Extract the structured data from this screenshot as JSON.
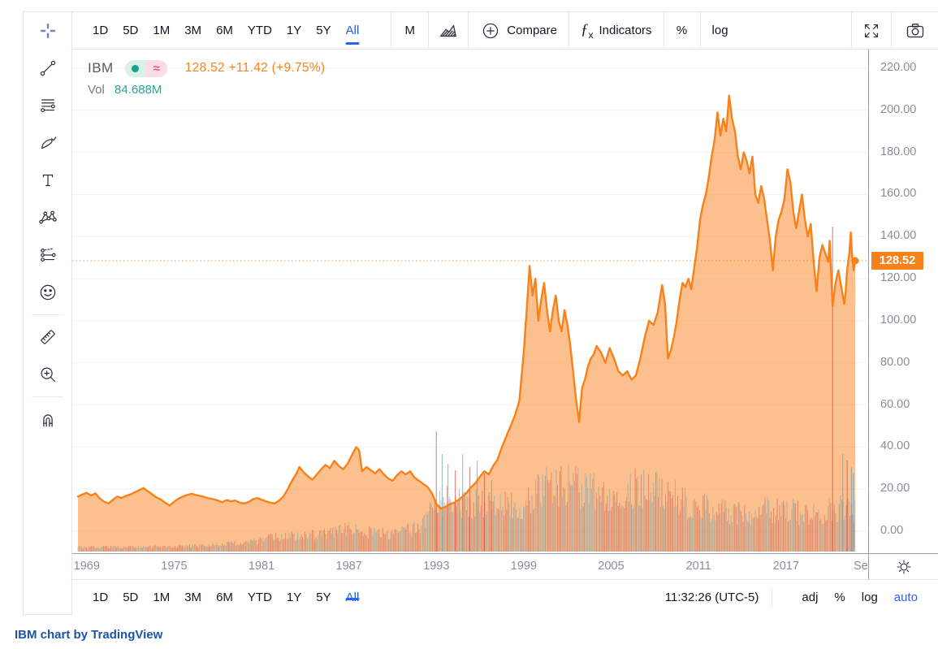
{
  "toolbar_top": {
    "ranges": [
      "1D",
      "5D",
      "1M",
      "3M",
      "6M",
      "YTD",
      "1Y",
      "5Y",
      "All"
    ],
    "active_range": "All",
    "interval": "M",
    "compare_label": "Compare",
    "indicators_label": "Indicators",
    "fx_glyph": "ƒ",
    "fx_sub": "x",
    "percent_label": "%",
    "log_label": "log"
  },
  "sidebar": {
    "crosshair": "crosshair-icon",
    "groups": [
      [
        "trend-line-icon",
        "fib-lines-icon",
        "brush-icon",
        "text-icon",
        "xabcd-pattern-icon",
        "forecast-icon",
        "emoji-icon"
      ],
      [
        "ruler-icon",
        "zoom-in-icon"
      ],
      [
        "magnet-icon"
      ]
    ]
  },
  "legend": {
    "symbol": "IBM",
    "approx_glyph": "≈",
    "price_text": "128.52 +11.42 (+9.75%)",
    "vol_label": "Vol",
    "vol_value": "84.688M"
  },
  "price_axis": {
    "ticks": [
      220,
      200,
      180,
      160,
      140,
      120,
      100,
      80,
      60,
      40,
      20,
      0
    ],
    "badge": "128.52"
  },
  "time_axis": {
    "tick_years": [
      1969,
      1975,
      1981,
      1987,
      1993,
      1999,
      2005,
      2011,
      2017
    ],
    "partial_label": "Se"
  },
  "toolbar_bottom": {
    "ranges": [
      "1D",
      "5D",
      "1M",
      "3M",
      "6M",
      "YTD",
      "1Y",
      "5Y",
      "All"
    ],
    "active_range": "All",
    "clock": "11:32:26 (UTC-5)",
    "adj_label": "adj",
    "percent_label": "%",
    "log_label": "log",
    "auto_label": "auto"
  },
  "attribution": "IBM chart by TradingView",
  "colors": {
    "accent_orange": "#f7821c",
    "area_fill": "rgba(247,130,28,0.5)",
    "active_blue": "#2962ff",
    "grid": "#f0f2f5",
    "vol_red": "rgba(208,82,73,0.5)",
    "vol_blue": "rgba(106,158,181,0.5)",
    "teal": "#26a69a",
    "crosshair_blue": "#7680c8"
  },
  "chart_data": {
    "type": "area",
    "symbol": "IBM",
    "interval": "M",
    "title": "IBM 128.52 +11.42 (+9.75%)",
    "x_axis": {
      "start_year": 1968.4,
      "end_year": 2021.75,
      "tick_years": [
        1969,
        1975,
        1981,
        1987,
        1993,
        1999,
        2005,
        2011,
        2017
      ]
    },
    "y_axis": {
      "min": 0,
      "max": 220,
      "tick_step": 20,
      "last_price": 128.52,
      "grid": true
    },
    "price_points": [
      [
        1968.4,
        16.5
      ],
      [
        1968.7,
        17.5
      ],
      [
        1969.0,
        18.2
      ],
      [
        1969.3,
        17.0
      ],
      [
        1969.6,
        18.0
      ],
      [
        1969.9,
        15.5
      ],
      [
        1970.2,
        14.0
      ],
      [
        1970.5,
        13.2
      ],
      [
        1970.8,
        15.0
      ],
      [
        1971.1,
        16.5
      ],
      [
        1971.4,
        15.8
      ],
      [
        1971.7,
        16.8
      ],
      [
        1972.0,
        17.5
      ],
      [
        1972.3,
        18.5
      ],
      [
        1972.6,
        19.5
      ],
      [
        1972.9,
        20.5
      ],
      [
        1973.2,
        19.0
      ],
      [
        1973.5,
        17.5
      ],
      [
        1973.8,
        16.0
      ],
      [
        1974.1,
        15.0
      ],
      [
        1974.4,
        13.5
      ],
      [
        1974.7,
        12.2
      ],
      [
        1975.0,
        14.0
      ],
      [
        1975.3,
        15.5
      ],
      [
        1975.6,
        16.5
      ],
      [
        1975.9,
        17.2
      ],
      [
        1976.2,
        17.8
      ],
      [
        1976.5,
        17.2
      ],
      [
        1976.8,
        16.8
      ],
      [
        1977.1,
        16.2
      ],
      [
        1977.4,
        15.6
      ],
      [
        1977.7,
        15.2
      ],
      [
        1978.0,
        14.6
      ],
      [
        1978.3,
        13.8
      ],
      [
        1978.6,
        14.8
      ],
      [
        1978.9,
        14.2
      ],
      [
        1979.2,
        14.6
      ],
      [
        1979.5,
        13.6
      ],
      [
        1979.8,
        13.2
      ],
      [
        1980.1,
        13.8
      ],
      [
        1980.4,
        15.2
      ],
      [
        1980.7,
        15.8
      ],
      [
        1981.0,
        15.0
      ],
      [
        1981.3,
        14.2
      ],
      [
        1981.6,
        13.6
      ],
      [
        1981.9,
        13.2
      ],
      [
        1982.2,
        14.5
      ],
      [
        1982.5,
        16.5
      ],
      [
        1982.8,
        20.0
      ],
      [
        1983.1,
        24.0
      ],
      [
        1983.4,
        27.5
      ],
      [
        1983.6,
        30.5
      ],
      [
        1983.9,
        28.0
      ],
      [
        1984.2,
        26.0
      ],
      [
        1984.5,
        24.5
      ],
      [
        1984.8,
        27.0
      ],
      [
        1985.1,
        29.5
      ],
      [
        1985.4,
        31.5
      ],
      [
        1985.7,
        30.0
      ],
      [
        1986.0,
        33.5
      ],
      [
        1986.3,
        31.0
      ],
      [
        1986.6,
        29.5
      ],
      [
        1986.9,
        32.0
      ],
      [
        1987.2,
        36.0
      ],
      [
        1987.5,
        40.0
      ],
      [
        1987.7,
        38.5
      ],
      [
        1987.9,
        28.5
      ],
      [
        1988.2,
        30.5
      ],
      [
        1988.5,
        29.0
      ],
      [
        1988.8,
        27.5
      ],
      [
        1989.1,
        29.5
      ],
      [
        1989.4,
        27.0
      ],
      [
        1989.7,
        25.0
      ],
      [
        1990.0,
        24.0
      ],
      [
        1990.3,
        26.5
      ],
      [
        1990.6,
        28.5
      ],
      [
        1990.9,
        27.0
      ],
      [
        1991.2,
        28.5
      ],
      [
        1991.5,
        25.5
      ],
      [
        1991.8,
        24.0
      ],
      [
        1992.1,
        22.5
      ],
      [
        1992.4,
        21.0
      ],
      [
        1992.7,
        18.0
      ],
      [
        1993.0,
        13.0
      ],
      [
        1993.3,
        10.8
      ],
      [
        1993.6,
        11.5
      ],
      [
        1993.9,
        12.8
      ],
      [
        1994.2,
        13.5
      ],
      [
        1994.5,
        14.8
      ],
      [
        1994.8,
        16.5
      ],
      [
        1995.1,
        18.5
      ],
      [
        1995.4,
        21.0
      ],
      [
        1995.7,
        23.0
      ],
      [
        1996.0,
        26.0
      ],
      [
        1996.3,
        28.5
      ],
      [
        1996.6,
        27.0
      ],
      [
        1996.9,
        31.0
      ],
      [
        1997.2,
        34.0
      ],
      [
        1997.5,
        40.0
      ],
      [
        1997.8,
        45.0
      ],
      [
        1998.1,
        50.0
      ],
      [
        1998.4,
        55.0
      ],
      [
        1998.7,
        62.0
      ],
      [
        1999.0,
        85.0
      ],
      [
        1999.2,
        105.0
      ],
      [
        1999.4,
        126.0
      ],
      [
        1999.6,
        112.0
      ],
      [
        1999.8,
        120.0
      ],
      [
        2000.0,
        100.0
      ],
      [
        2000.2,
        110.0
      ],
      [
        2000.4,
        118.0
      ],
      [
        2000.6,
        105.0
      ],
      [
        2000.8,
        95.0
      ],
      [
        2001.0,
        105.0
      ],
      [
        2001.2,
        112.0
      ],
      [
        2001.4,
        100.0
      ],
      [
        2001.6,
        95.0
      ],
      [
        2001.8,
        105.0
      ],
      [
        2002.0,
        98.0
      ],
      [
        2002.2,
        88.0
      ],
      [
        2002.4,
        75.0
      ],
      [
        2002.6,
        62.0
      ],
      [
        2002.8,
        52.0
      ],
      [
        2003.0,
        68.0
      ],
      [
        2003.2,
        72.0
      ],
      [
        2003.4,
        78.0
      ],
      [
        2003.6,
        82.0
      ],
      [
        2003.8,
        84.0
      ],
      [
        2004.0,
        88.0
      ],
      [
        2004.3,
        85.0
      ],
      [
        2004.6,
        80.0
      ],
      [
        2004.9,
        87.0
      ],
      [
        2005.2,
        82.0
      ],
      [
        2005.5,
        76.0
      ],
      [
        2005.8,
        74.0
      ],
      [
        2006.1,
        76.0
      ],
      [
        2006.4,
        72.0
      ],
      [
        2006.7,
        74.0
      ],
      [
        2007.0,
        82.0
      ],
      [
        2007.3,
        92.0
      ],
      [
        2007.6,
        100.0
      ],
      [
        2007.9,
        98.0
      ],
      [
        2008.2,
        104.0
      ],
      [
        2008.5,
        117.0
      ],
      [
        2008.7,
        108.0
      ],
      [
        2008.9,
        82.0
      ],
      [
        2009.1,
        86.0
      ],
      [
        2009.3,
        92.0
      ],
      [
        2009.5,
        100.0
      ],
      [
        2009.7,
        110.0
      ],
      [
        2009.9,
        118.0
      ],
      [
        2010.1,
        116.0
      ],
      [
        2010.3,
        120.0
      ],
      [
        2010.5,
        115.0
      ],
      [
        2010.7,
        125.0
      ],
      [
        2010.9,
        135.0
      ],
      [
        2011.1,
        148.0
      ],
      [
        2011.3,
        155.0
      ],
      [
        2011.5,
        160.0
      ],
      [
        2011.7,
        168.0
      ],
      [
        2011.9,
        178.0
      ],
      [
        2012.1,
        186.0
      ],
      [
        2012.3,
        199.0
      ],
      [
        2012.5,
        188.0
      ],
      [
        2012.7,
        196.0
      ],
      [
        2012.9,
        190.0
      ],
      [
        2013.1,
        207.0
      ],
      [
        2013.3,
        196.0
      ],
      [
        2013.5,
        190.0
      ],
      [
        2013.7,
        178.0
      ],
      [
        2013.9,
        172.0
      ],
      [
        2014.1,
        180.0
      ],
      [
        2014.3,
        176.0
      ],
      [
        2014.5,
        170.0
      ],
      [
        2014.7,
        178.0
      ],
      [
        2014.9,
        160.0
      ],
      [
        2015.1,
        156.0
      ],
      [
        2015.3,
        164.0
      ],
      [
        2015.5,
        158.0
      ],
      [
        2015.7,
        148.0
      ],
      [
        2015.9,
        138.0
      ],
      [
        2016.1,
        124.0
      ],
      [
        2016.3,
        140.0
      ],
      [
        2016.5,
        148.0
      ],
      [
        2016.7,
        152.0
      ],
      [
        2016.9,
        158.0
      ],
      [
        2017.1,
        172.0
      ],
      [
        2017.3,
        166.0
      ],
      [
        2017.5,
        152.0
      ],
      [
        2017.7,
        144.0
      ],
      [
        2017.9,
        152.0
      ],
      [
        2018.1,
        160.0
      ],
      [
        2018.3,
        148.0
      ],
      [
        2018.5,
        140.0
      ],
      [
        2018.7,
        146.0
      ],
      [
        2018.9,
        128.0
      ],
      [
        2019.1,
        114.0
      ],
      [
        2019.3,
        130.0
      ],
      [
        2019.5,
        136.0
      ],
      [
        2019.7,
        132.0
      ],
      [
        2019.9,
        128.0
      ],
      [
        2020.0,
        138.0
      ],
      [
        2020.2,
        107.0
      ],
      [
        2020.4,
        118.0
      ],
      [
        2020.6,
        124.0
      ],
      [
        2020.8,
        116.0
      ],
      [
        2021.0,
        108.0
      ],
      [
        2021.1,
        114.0
      ],
      [
        2021.2,
        124.0
      ],
      [
        2021.35,
        132.0
      ],
      [
        2021.45,
        142.0
      ],
      [
        2021.55,
        130.0
      ],
      [
        2021.65,
        124.0
      ],
      [
        2021.75,
        128.52
      ]
    ],
    "volume_envelope": [
      [
        1968.4,
        0.018
      ],
      [
        1975,
        0.02
      ],
      [
        1980,
        0.035
      ],
      [
        1982,
        0.06
      ],
      [
        1985,
        0.07
      ],
      [
        1987,
        0.09
      ],
      [
        1990,
        0.07
      ],
      [
        1992,
        0.1
      ],
      [
        1993,
        0.22
      ],
      [
        1995,
        0.2
      ],
      [
        1997,
        0.18
      ],
      [
        1999,
        0.2
      ],
      [
        2000,
        0.26
      ],
      [
        2002,
        0.28
      ],
      [
        2004,
        0.24
      ],
      [
        2006,
        0.25
      ],
      [
        2008,
        0.27
      ],
      [
        2010,
        0.2
      ],
      [
        2012,
        0.17
      ],
      [
        2014,
        0.16
      ],
      [
        2016,
        0.17
      ],
      [
        2018,
        0.16
      ],
      [
        2019,
        0.15
      ],
      [
        2020,
        0.18
      ],
      [
        2021.7,
        0.17
      ]
    ],
    "volume_spikes": [
      [
        1993.0,
        0.37,
        "red"
      ],
      [
        1993.4,
        0.3,
        "blue"
      ],
      [
        1993.8,
        0.27,
        "blue"
      ],
      [
        1994.3,
        0.25,
        "red"
      ],
      [
        1994.8,
        0.3,
        "blue"
      ],
      [
        1995.3,
        0.26,
        "red"
      ],
      [
        1995.8,
        0.28,
        "blue"
      ],
      [
        1996.3,
        0.24,
        "red"
      ],
      [
        1996.8,
        0.22,
        "blue"
      ],
      [
        2020.2,
        1.0,
        "red"
      ],
      [
        2020.9,
        0.3,
        "blue"
      ],
      [
        2021.2,
        0.28,
        "red"
      ],
      [
        2021.5,
        0.26,
        "blue"
      ],
      [
        2021.62,
        0.24,
        "blue"
      ]
    ]
  }
}
